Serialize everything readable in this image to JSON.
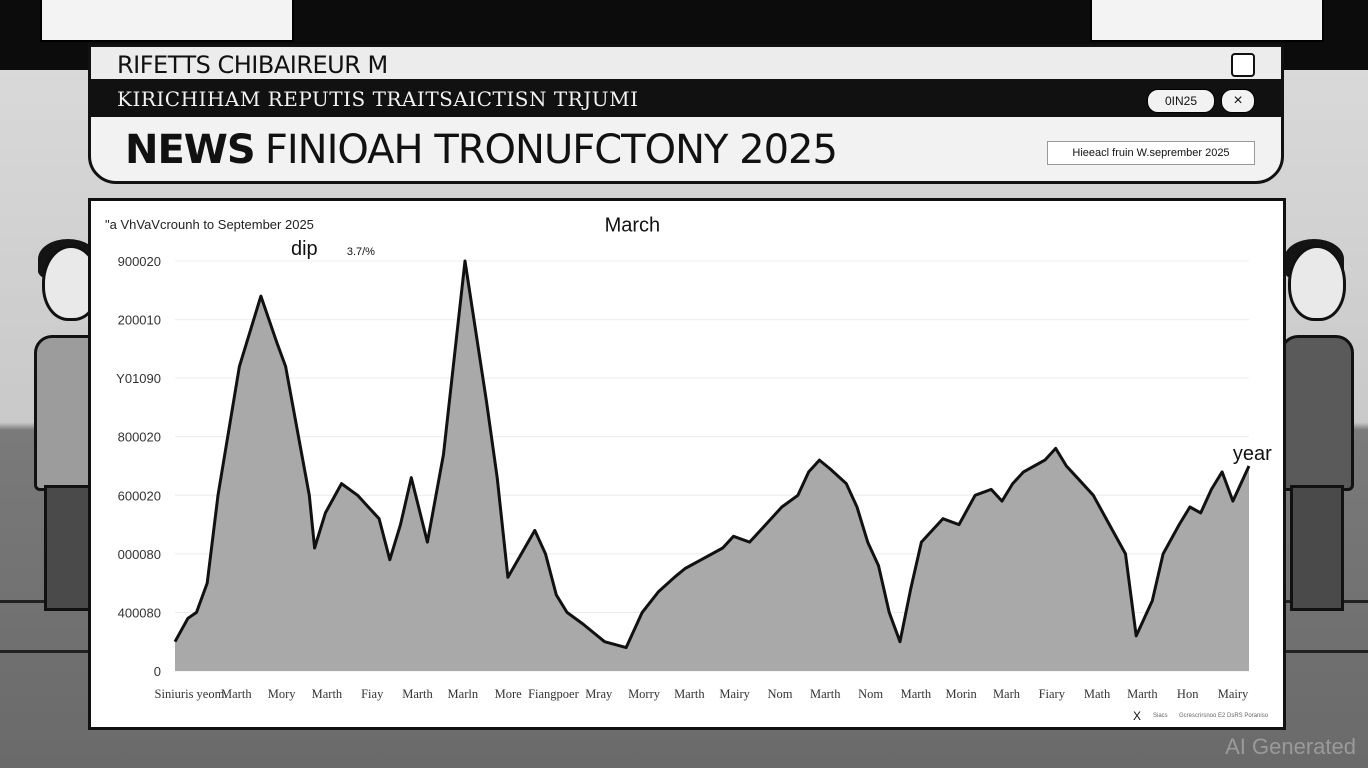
{
  "window": {
    "title": "RIFETTS CHIBAIREUR M",
    "nav_text": "KIRICHIHAM REPUTIS TRAITSAICTISN TRJUMI",
    "pill_label": "0IN25",
    "close_label": "×",
    "headline_lead": "NEWS",
    "headline_rest": "FINIOAH TRONUFCTONY 2025",
    "date_tag": "Hieeacl fruin W.seprember 2025"
  },
  "chart": {
    "subtitle": "\"a VhVaVcrounh to September 2025",
    "footer_close": "X",
    "footer_note": "Siacs",
    "footer_source": "Gcrescrirsnoo E2 DsRS Poraniso"
  },
  "chart_data": {
    "type": "area",
    "title": "",
    "y_tick_labels": [
      "900020",
      "200010",
      "Y01090",
      "800020",
      "600020",
      "000080",
      "400080",
      "0"
    ],
    "x_tick_labels": [
      "Siniuris yeom.",
      "Marth",
      "Mory",
      "Marth",
      "Fiay",
      "Marth",
      "Marln",
      "More",
      "Fiangpoer",
      "Mray",
      "Morry",
      "Marth",
      "Mairy",
      "Nom",
      "Marth",
      "Nom",
      "Marth",
      "Morin",
      "Marh",
      "Fiary",
      "Math",
      "Marth",
      "Hon",
      "Mairy"
    ],
    "annotations": [
      {
        "text": "dip",
        "x": 0.108,
        "y": 700000
      },
      {
        "text": "3.7/%",
        "x": 0.16,
        "y": 700000
      },
      {
        "text": "March",
        "x": 0.4,
        "y": 740000
      },
      {
        "text": "year",
        "x": 0.985,
        "y": 350000
      }
    ],
    "x_range": [
      0,
      1
    ],
    "y_range": [
      0,
      700000
    ],
    "grid": true,
    "fill_color": "#a9a9a9",
    "line_color": "#111111",
    "series": [
      {
        "x": [
          0,
          0.012,
          0.02,
          0.03,
          0.04,
          0.06,
          0.08,
          0.095,
          0.103,
          0.115,
          0.125,
          0.13,
          0.14,
          0.155,
          0.17,
          0.18,
          0.19,
          0.2,
          0.21,
          0.22,
          0.235,
          0.25,
          0.27,
          0.29,
          0.3,
          0.31,
          0.335,
          0.345,
          0.355,
          0.365,
          0.38,
          0.4,
          0.42,
          0.435,
          0.45,
          0.465,
          0.475,
          0.49,
          0.51,
          0.52,
          0.535,
          0.55,
          0.565,
          0.58,
          0.59,
          0.6,
          0.61,
          0.625,
          0.635,
          0.645,
          0.655,
          0.665,
          0.675,
          0.685,
          0.695,
          0.705,
          0.715,
          0.73,
          0.745,
          0.76,
          0.77,
          0.78,
          0.79,
          0.8,
          0.81,
          0.82,
          0.83,
          0.84,
          0.855,
          0.87,
          0.885,
          0.895,
          0.91,
          0.92,
          0.935,
          0.945,
          0.955,
          0.965,
          0.975,
          0.985,
          0.995,
          1.0
        ],
        "values": [
          50000,
          90000,
          100000,
          150000,
          300000,
          520000,
          640000,
          560000,
          520000,
          400000,
          300000,
          210000,
          270000,
          320000,
          300000,
          280000,
          260000,
          190000,
          250000,
          330000,
          220000,
          370000,
          700000,
          460000,
          330000,
          160000,
          240000,
          200000,
          130000,
          100000,
          80000,
          50000,
          40000,
          100000,
          135000,
          160000,
          175000,
          190000,
          210000,
          230000,
          220000,
          250000,
          280000,
          300000,
          340000,
          360000,
          345000,
          320000,
          280000,
          220000,
          180000,
          100000,
          50000,
          140000,
          220000,
          240000,
          260000,
          250000,
          300000,
          310000,
          290000,
          320000,
          340000,
          350000,
          360000,
          380000,
          350000,
          330000,
          300000,
          250000,
          200000,
          60000,
          120000,
          200000,
          250000,
          280000,
          270000,
          310000,
          340000,
          290000,
          330000,
          350000
        ]
      }
    ]
  }
}
